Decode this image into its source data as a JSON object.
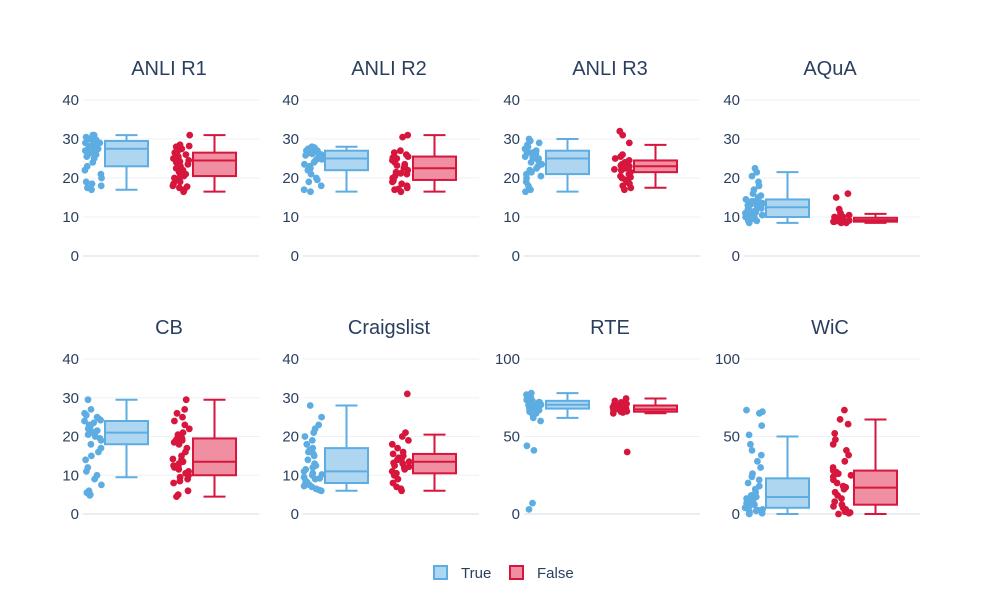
{
  "chart_data": {
    "type": "box",
    "legend": {
      "placement": "bottom-center",
      "entries": [
        {
          "name": "True",
          "color": "#5dade2",
          "fill": "#aed6f1"
        },
        {
          "name": "False",
          "color": "#d6163c",
          "fill": "#f08ea2"
        }
      ]
    },
    "panels": [
      {
        "title": "ANLI R1",
        "ylim": [
          0,
          40
        ],
        "yticks": [
          0,
          10,
          20,
          30,
          40
        ],
        "series": [
          {
            "name": "True",
            "box": {
              "min": 17,
              "q1": 23,
              "median": 27.5,
              "q3": 29.5,
              "max": 31
            },
            "points": [
              31,
              31,
              30.5,
              30,
              30,
              29.5,
              29,
              29,
              28.5,
              28,
              28,
              27.5,
              27,
              27,
              26.5,
              26,
              26,
              25.5,
              25,
              24,
              23,
              22,
              21,
              20,
              19,
              18.5,
              18,
              17.5,
              17,
              30.8,
              29.8,
              28.2,
              26.8
            ]
          },
          {
            "name": "False",
            "box": {
              "min": 16.5,
              "q1": 20.5,
              "median": 24.5,
              "q3": 26.5,
              "max": 31
            },
            "points": [
              31,
              28.5,
              28,
              27.5,
              27,
              26.5,
              26,
              25.5,
              25,
              25,
              24.5,
              24,
              23.5,
              23,
              22.5,
              22,
              21.5,
              21,
              20.5,
              20,
              19.5,
              19,
              18.5,
              18,
              17.5,
              17,
              16.5,
              28.2,
              25.2,
              24.2,
              22.2,
              20.2,
              17.8
            ]
          }
        ]
      },
      {
        "title": "ANLI R2",
        "ylim": [
          0,
          40
        ],
        "yticks": [
          0,
          10,
          20,
          30,
          40
        ],
        "series": [
          {
            "name": "True",
            "box": {
              "min": 16.5,
              "q1": 22,
              "median": 25,
              "q3": 27,
              "max": 28
            },
            "points": [
              28,
              28,
              27.5,
              27.5,
              27,
              27,
              26.5,
              26.5,
              26,
              26,
              25.5,
              25,
              25,
              24.5,
              24,
              23.5,
              23,
              22.5,
              22,
              21,
              20,
              19.5,
              19,
              18,
              17,
              16.5,
              27.8,
              26.8,
              25.8,
              24.8,
              26.2
            ]
          },
          {
            "name": "False",
            "box": {
              "min": 16.5,
              "q1": 19.5,
              "median": 22.5,
              "q3": 25.5,
              "max": 31
            },
            "points": [
              31,
              30.5,
              27,
              26.5,
              26,
              25.5,
              25,
              24.5,
              24,
              23.5,
              23,
              22.5,
              22,
              21.5,
              21,
              20.5,
              20,
              19.5,
              19,
              18.5,
              18,
              17.5,
              17,
              16.5,
              25.2,
              23.2,
              21.2,
              19.2,
              17.2
            ]
          }
        ]
      },
      {
        "title": "ANLI R3",
        "ylim": [
          0,
          40
        ],
        "yticks": [
          0,
          10,
          20,
          30,
          40
        ],
        "series": [
          {
            "name": "True",
            "box": {
              "min": 16.5,
              "q1": 21,
              "median": 25,
              "q3": 27,
              "max": 30
            },
            "points": [
              30,
              29.5,
              29,
              28.5,
              28,
              27.5,
              27,
              27,
              26.5,
              26.5,
              26,
              26,
              25.5,
              25,
              25,
              24.5,
              24,
              23.5,
              23,
              22.5,
              22,
              21.5,
              21,
              20.5,
              20,
              19,
              18,
              17,
              16.5,
              26.2,
              25.2
            ]
          },
          {
            "name": "False",
            "box": {
              "min": 17.5,
              "q1": 21.5,
              "median": 23,
              "q3": 24.5,
              "max": 28.5
            },
            "points": [
              32,
              31,
              29,
              26,
              25.5,
              25,
              24.5,
              24,
              23.5,
              23,
              22.5,
              22,
              21.5,
              21,
              20.5,
              20,
              19.5,
              19,
              18.5,
              18,
              17.5,
              17,
              24.2,
              23.2,
              22.2,
              20.2
            ]
          }
        ]
      },
      {
        "title": "AQuA",
        "ylim": [
          0,
          40
        ],
        "yticks": [
          0,
          10,
          20,
          30,
          40
        ],
        "series": [
          {
            "name": "True",
            "box": {
              "min": 8.5,
              "q1": 10,
              "median": 12.5,
              "q3": 14.5,
              "max": 21.5
            },
            "points": [
              22.5,
              21.5,
              20.5,
              19,
              18,
              17,
              16,
              15.5,
              15,
              14.5,
              14,
              14,
              13.5,
              13,
              13,
              12.5,
              12,
              12,
              11.5,
              11,
              11,
              10.5,
              10,
              10,
              9.5,
              9,
              9,
              8.5,
              14.2,
              13.2,
              12.2,
              11.2,
              10.2
            ]
          },
          {
            "name": "False",
            "box": {
              "min": 8.5,
              "q1": 8.8,
              "median": 9.2,
              "q3": 9.8,
              "max": 10.8
            },
            "points": [
              16,
              15,
              12,
              11,
              10.5,
              10,
              10,
              9.8,
              9.5,
              9.5,
              9.2,
              9,
              9,
              8.8,
              8.8,
              8.5,
              8.5,
              9.3,
              9.1,
              8.9,
              8.7
            ]
          }
        ]
      },
      {
        "title": "CB",
        "ylim": [
          0,
          40
        ],
        "yticks": [
          0,
          10,
          20,
          30,
          40
        ],
        "series": [
          {
            "name": "True",
            "box": {
              "min": 9.5,
              "q1": 18,
              "median": 21,
              "q3": 24,
              "max": 29.5
            },
            "points": [
              29.5,
              27,
              26,
              25.5,
              25,
              24.5,
              24,
              23.5,
              23,
              22.5,
              22,
              21.5,
              21,
              20.5,
              20,
              19.5,
              19,
              18,
              17,
              16,
              15,
              14,
              12,
              11,
              10,
              9,
              7.5,
              6,
              5,
              4.8,
              5.5,
              24.2,
              21.2
            ]
          },
          {
            "name": "False",
            "box": {
              "min": 4.5,
              "q1": 10,
              "median": 13.5,
              "q3": 19.5,
              "max": 29.5
            },
            "points": [
              29.5,
              27,
              26,
              25,
              24,
              23,
              22,
              21,
              20.5,
              20,
              19.5,
              19,
              18.5,
              18,
              17,
              16,
              15,
              14,
              13.5,
              13,
              12.5,
              12,
              11.5,
              11,
              10.5,
              10,
              9.5,
              9,
              8.5,
              8,
              6,
              5,
              4.5,
              19.2,
              14.2,
              12.2
            ]
          }
        ]
      },
      {
        "title": "Craigslist",
        "ylim": [
          0,
          40
        ],
        "yticks": [
          0,
          10,
          20,
          30,
          40
        ],
        "series": [
          {
            "name": "True",
            "box": {
              "min": 6,
              "q1": 8,
              "median": 11,
              "q3": 17,
              "max": 28
            },
            "points": [
              28,
              25,
              23,
              22,
              21,
              20,
              19,
              18,
              17,
              16.5,
              16,
              15.5,
              15,
              14,
              13,
              12.5,
              12,
              11.5,
              11,
              10.5,
              10,
              9.5,
              9,
              8.5,
              8,
              7.5,
              7,
              6.5,
              6,
              9.2,
              8.2,
              7.2,
              6.2,
              10.2
            ]
          },
          {
            "name": "False",
            "box": {
              "min": 6,
              "q1": 10.5,
              "median": 13.5,
              "q3": 15.5,
              "max": 20.5
            },
            "points": [
              31,
              21,
              20,
              19,
              18,
              17,
              16,
              15.5,
              15,
              14.5,
              14,
              13.5,
              13,
              12.5,
              12,
              11.5,
              11,
              10.5,
              10,
              9,
              8,
              7,
              6.5,
              6,
              14.2,
              12.2,
              13.2
            ]
          }
        ]
      },
      {
        "title": "RTE",
        "ylim": [
          0,
          100
        ],
        "yticks": [
          0,
          50,
          100
        ],
        "series": [
          {
            "name": "True",
            "box": {
              "min": 62,
              "q1": 68,
              "median": 70.5,
              "q3": 73,
              "max": 78
            },
            "points": [
              78,
              77,
              76,
              75.5,
              75,
              74.5,
              74,
              73.5,
              73,
              72.5,
              72,
              71.5,
              71,
              70.5,
              70,
              69.5,
              69,
              68.5,
              68,
              67,
              66,
              65,
              64,
              62,
              60,
              44,
              41,
              7,
              3,
              72.2,
              71.2,
              70.2
            ]
          },
          {
            "name": "False",
            "box": {
              "min": 65,
              "q1": 66,
              "median": 67.5,
              "q3": 70,
              "max": 74.5
            },
            "points": [
              74.5,
              73,
              72,
              71,
              70.5,
              70,
              69.5,
              69,
              68.5,
              68,
              67.5,
              67,
              66.5,
              66,
              65.5,
              65,
              40,
              69.2,
              67.2,
              66.2
            ]
          }
        ]
      },
      {
        "title": "WiC",
        "ylim": [
          0,
          100
        ],
        "yticks": [
          0,
          50,
          100
        ],
        "series": [
          {
            "name": "True",
            "box": {
              "min": 0,
              "q1": 4,
              "median": 11,
              "q3": 23,
              "max": 50
            },
            "points": [
              67,
              66,
              65,
              57,
              51,
              45,
              41,
              38,
              34,
              30,
              26,
              24,
              22,
              20,
              18,
              16,
              14,
              12,
              11,
              10,
              9,
              8,
              7,
              6,
              5,
              4,
              3,
              2,
              1,
              0,
              0.5,
              1.5,
              2.5
            ]
          },
          {
            "name": "False",
            "box": {
              "min": 0,
              "q1": 6,
              "median": 17,
              "q3": 28,
              "max": 61
            },
            "points": [
              67,
              61,
              58,
              52,
              48,
              45,
              41,
              38,
              34,
              30,
              28,
              27,
              26,
              25,
              24,
              22,
              20,
              18,
              16,
              14,
              12,
              10,
              8,
              6,
              5,
              4,
              3,
              2,
              1,
              0,
              0.5,
              1.5,
              17.2
            ]
          }
        ]
      }
    ]
  }
}
